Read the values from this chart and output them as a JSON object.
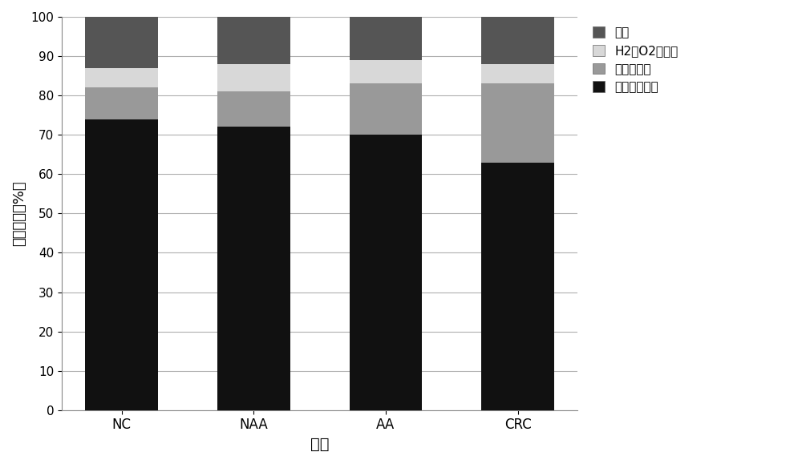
{
  "categories": [
    "NC",
    "NAA",
    "AA",
    "CRC"
  ],
  "series_bottom_to_top": [
    {
      "label": "丁酸盐生产者",
      "color": "#111111",
      "values": [
        74,
        72,
        70,
        63
      ]
    },
    {
      "label": "机会病原体",
      "color": "#999999",
      "values": [
        8,
        9,
        13,
        20
      ]
    },
    {
      "label": "H2和O2生产者",
      "color": "#d8d8d8",
      "values": [
        5,
        7,
        6,
        5
      ]
    },
    {
      "label": "糖解",
      "color": "#555555",
      "values": [
        13,
        12,
        11,
        12
      ]
    }
  ],
  "legend_order": [
    3,
    2,
    1,
    0
  ],
  "ylabel": "相对丰度（%）",
  "xlabel": "诊断",
  "ylim": [
    0,
    100
  ],
  "yticks": [
    0,
    10,
    20,
    30,
    40,
    50,
    60,
    70,
    80,
    90,
    100
  ],
  "background_color": "#ffffff",
  "grid_color": "#b0b0b0",
  "bar_width": 0.55,
  "figsize": [
    10.0,
    5.79
  ]
}
